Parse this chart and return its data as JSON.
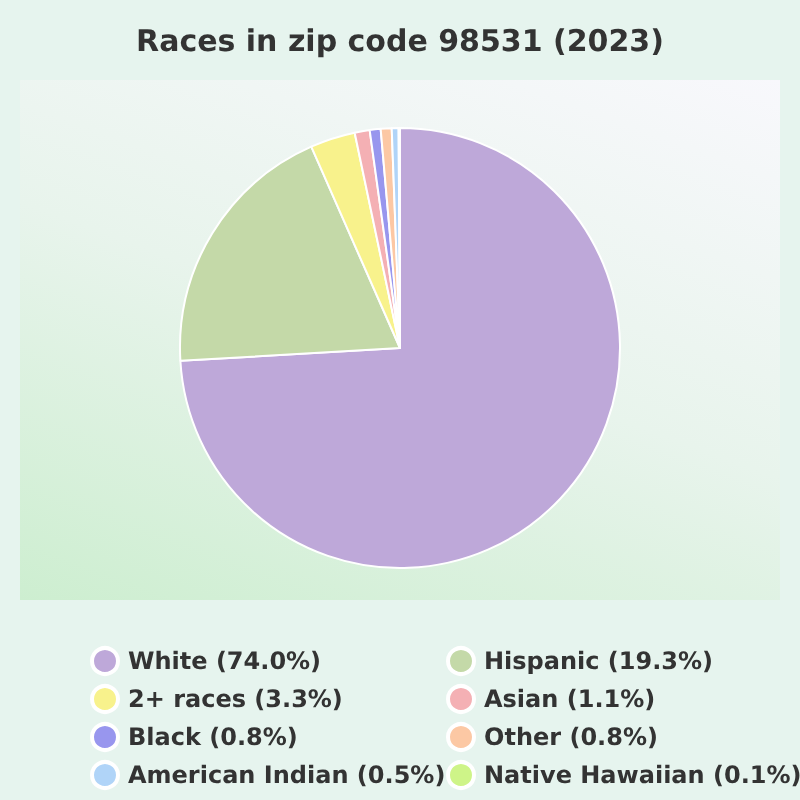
{
  "chart_data": {
    "type": "pie",
    "title": "Races in zip code 98531 (2023)",
    "categories": [
      "White (74.0%)",
      "Hispanic (19.3%)",
      "2+ races (3.3%)",
      "Asian (1.1%)",
      "Black (0.8%)",
      "Other (0.8%)",
      "American Indian (0.5%)",
      "Native Hawaiian (0.1%)"
    ],
    "values": [
      74.0,
      19.3,
      3.3,
      1.1,
      0.8,
      0.8,
      0.5,
      0.1
    ],
    "colors": [
      "#bea8d9",
      "#c4d9a8",
      "#f8f28c",
      "#f4b0b4",
      "#9896ee",
      "#fcc8a4",
      "#b0d4f8",
      "#cef488"
    ],
    "legend": "bottom"
  }
}
